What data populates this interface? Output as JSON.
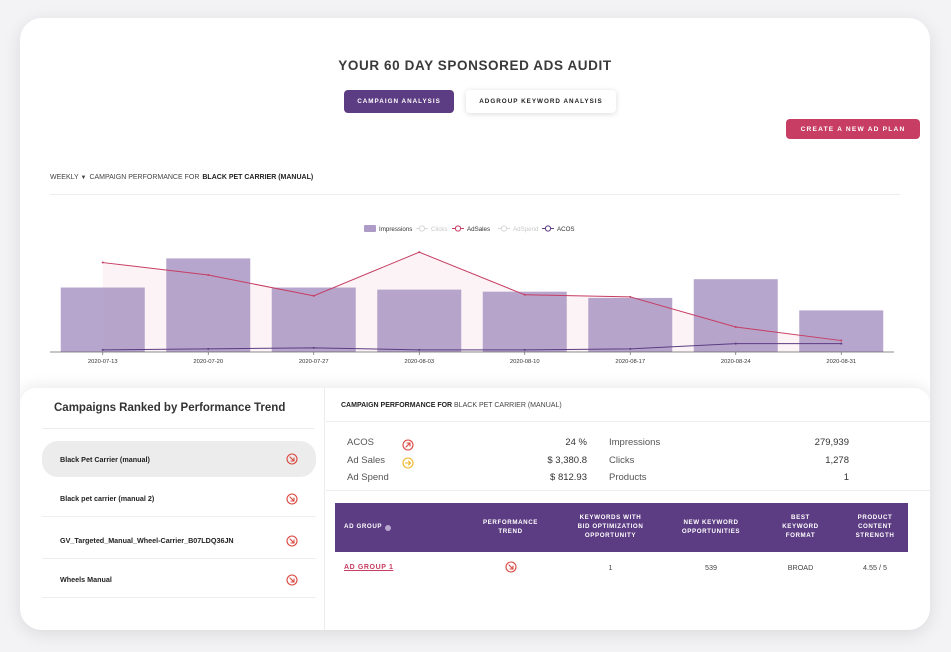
{
  "title": "YOUR 60 DAY SPONSORED ADS AUDIT",
  "tabs": [
    {
      "label": "CAMPAIGN ANALYSIS",
      "active": true
    },
    {
      "label": "ADGROUP KEYWORD ANALYSIS",
      "active": false
    }
  ],
  "new_plan_label": "CREATE A NEW AD PLAN",
  "performance_header": {
    "period": "WEEKLY",
    "prefix": "CAMPAIGN PERFORMANCE FOR",
    "campaign": "BLACK PET CARRIER (MANUAL)"
  },
  "chart_data": {
    "type": "bar",
    "categories": [
      "2020-07-13",
      "2020-07-20",
      "2020-07-27",
      "2020-08-03",
      "2020-08-10",
      "2020-08-17",
      "2020-08-24",
      "2020-08-31"
    ],
    "legend": [
      "Impressions",
      "Clicks",
      "AdSales",
      "AdSpend",
      "ACOS"
    ],
    "legend_placement": "top-center",
    "series": [
      {
        "name": "Impressions",
        "kind": "bar",
        "values": [
          0.62,
          0.9,
          0.62,
          0.6,
          0.58,
          0.52,
          0.7,
          0.4
        ],
        "color": "#ae9bc7"
      },
      {
        "name": "AdSales",
        "kind": "line",
        "values": [
          0.86,
          0.74,
          0.54,
          0.96,
          0.55,
          0.53,
          0.24,
          0.11
        ],
        "color": "#c73d63"
      },
      {
        "name": "ACOS",
        "kind": "line",
        "values": [
          0.02,
          0.03,
          0.04,
          0.02,
          0.02,
          0.03,
          0.08,
          0.08
        ],
        "color": "#5c3c82"
      }
    ],
    "hidden_series": [
      "Clicks",
      "AdSpend"
    ]
  },
  "ranked": {
    "title": "Campaigns Ranked by Performance Trend",
    "items": [
      {
        "name": "Black Pet Carrier (manual)",
        "selected": true
      },
      {
        "name": "Black pet carrier (manual 2)",
        "selected": false
      },
      {
        "name": "GV_Targeted_Manual_Wheel-Carrier_B07LDQ36JN",
        "selected": false
      },
      {
        "name": "Wheels Manual",
        "selected": false
      }
    ]
  },
  "detail": {
    "prefix": "CAMPAIGN PERFORMANCE FOR",
    "campaign": "BLACK PET CARRIER (MANUAL)",
    "metrics_left": [
      {
        "label": "ACOS",
        "value": "24 %",
        "trend": "up",
        "trend_color": "#d9463e"
      },
      {
        "label": "Ad Sales",
        "value": "$ 3,380.8",
        "trend": "right",
        "trend_color": "#f0b429"
      },
      {
        "label": "Ad Spend",
        "value": "$ 812.93",
        "trend": "none",
        "trend_color": ""
      }
    ],
    "metrics_right": [
      {
        "label": "Impressions",
        "value": "279,939"
      },
      {
        "label": "Clicks",
        "value": "1,278"
      },
      {
        "label": "Products",
        "value": "1"
      }
    ],
    "table": {
      "headers": [
        "AD GROUP",
        "PERFORMANCE TREND",
        "KEYWORDS WITH BID OPTIMIZATION OPPORTUNITY",
        "NEW KEYWORD OPPORTUNITIES",
        "BEST KEYWORD FORMAT",
        "PRODUCT CONTENT STRENGTH"
      ],
      "headers_display": [
        "AD GROUP",
        "PERFORMANCE\nTREND",
        "KEYWORDS WITH\nBID OPTIMIZATION\nOPPORTUNITY",
        "NEW KEYWORD\nOPPORTUNITIES",
        "BEST\nKEYWORD\nFORMAT",
        "PRODUCT\nCONTENT\nSTRENGTH"
      ],
      "rows": [
        {
          "ad_group": "AD GROUP 1",
          "keywords_bid": "1",
          "new_keywords": "539",
          "format": "BROAD",
          "strength": "4.55 / 5"
        }
      ]
    }
  },
  "colors": {
    "primary": "#5c3c82",
    "accent": "#c73d63",
    "bar": "#ae9bc7",
    "down_trend": "#d9463e",
    "flat_trend": "#f0b429"
  }
}
